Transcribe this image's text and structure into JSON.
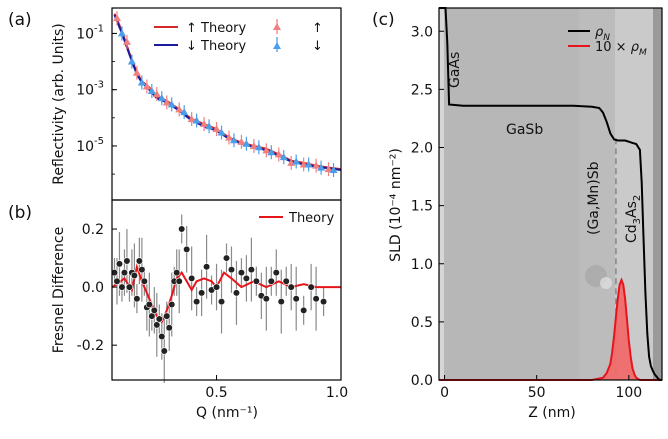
{
  "panels": {
    "a": {
      "label": "(a)"
    },
    "b": {
      "label": "(b)"
    },
    "c": {
      "label": "(c)"
    }
  },
  "colors": {
    "up_theory": "#d62728",
    "down_theory": "#1a1a9c",
    "up_data": "#f08080",
    "down_data": "#4a9eea",
    "fresnel_theory": "#e8141c",
    "rho_m": "#e8141c",
    "rho_m_fill": "#ef6a6a",
    "rho_n": "#000000",
    "micrograph": "#bdbdbd"
  },
  "chart_data": [
    {
      "type": "line",
      "panel": "a",
      "ylabel": "Reflectivity (arb. Units)",
      "yscale": "log",
      "ylim": [
        1.2e-07,
        0.8
      ],
      "xlim": [
        0.08,
        1.0
      ],
      "y_tick_labels": [
        "10^-1",
        "10^-3",
        "10^-5"
      ],
      "y_tick_values": [
        0.1,
        0.001,
        1e-05
      ],
      "legend": {
        "position": "top-right",
        "entries": [
          "↑  Theory",
          "↓  Theory",
          "↑",
          "↓"
        ]
      },
      "series": [
        {
          "name": "↑ Theory",
          "x": [
            0.09,
            0.12,
            0.15,
            0.18,
            0.2,
            0.23,
            0.26,
            0.3,
            0.35,
            0.4,
            0.45,
            0.5,
            0.55,
            0.6,
            0.65,
            0.7,
            0.75,
            0.8,
            0.85,
            0.9,
            0.95,
            1.0
          ],
          "y": [
            0.5,
            0.12,
            0.02,
            0.004,
            0.002,
            0.0012,
            0.0006,
            0.0004,
            0.0002,
            9e-05,
            6e-05,
            4e-05,
            2e-05,
            1.3e-05,
            1e-05,
            8e-06,
            5e-06,
            3e-06,
            2.5e-06,
            2e-06,
            1.7e-06,
            1.5e-06
          ]
        },
        {
          "name": "↓ Theory",
          "x": [
            0.09,
            0.12,
            0.15,
            0.18,
            0.2,
            0.23,
            0.26,
            0.3,
            0.35,
            0.4,
            0.45,
            0.5,
            0.55,
            0.6,
            0.65,
            0.7,
            0.75,
            0.8,
            0.85,
            0.9,
            0.95,
            1.0
          ],
          "y": [
            0.45,
            0.1,
            0.018,
            0.0035,
            0.0018,
            0.001,
            0.0005,
            0.00035,
            0.00018,
            8e-05,
            5e-05,
            3.5e-05,
            1.8e-05,
            1.2e-05,
            9e-06,
            7e-06,
            4.5e-06,
            2.8e-06,
            2.2e-06,
            1.8e-06,
            1.6e-06,
            1.4e-06
          ]
        },
        {
          "name": "↑",
          "x": [
            0.1,
            0.14,
            0.18,
            0.22,
            0.26,
            0.3,
            0.35,
            0.4,
            0.45,
            0.5,
            0.55,
            0.6,
            0.65,
            0.7,
            0.75,
            0.8,
            0.85,
            0.9,
            0.95
          ],
          "y": [
            0.35,
            0.05,
            0.004,
            0.0013,
            0.0007,
            0.00035,
            0.0002,
            9e-05,
            6e-05,
            4e-05,
            2e-05,
            1.4e-05,
            1e-05,
            7e-06,
            5e-06,
            2.5e-06,
            2.2e-06,
            2e-06,
            1.5e-06
          ]
        },
        {
          "name": "↓",
          "x": [
            0.12,
            0.16,
            0.2,
            0.24,
            0.28,
            0.32,
            0.37,
            0.42,
            0.47,
            0.52,
            0.57,
            0.62,
            0.67,
            0.72,
            0.77,
            0.82,
            0.87,
            0.92,
            0.97
          ],
          "y": [
            0.1,
            0.01,
            0.0018,
            0.0009,
            0.0005,
            0.0003,
            0.00016,
            8e-05,
            5e-05,
            3e-05,
            1.6e-05,
            1.2e-05,
            9e-06,
            6e-06,
            4e-06,
            2.8e-06,
            2.2e-06,
            1.7e-06,
            1.4e-06
          ]
        }
      ]
    },
    {
      "type": "scatter",
      "panel": "b",
      "xlabel": "Q (nm⁻¹)",
      "ylabel": "Fresnel Difference",
      "xlim": [
        0.08,
        1.0
      ],
      "ylim": [
        -0.32,
        0.3
      ],
      "x_tick_labels": [
        "0.5",
        "1.0"
      ],
      "x_tick_values": [
        0.5,
        1.0
      ],
      "y_tick_labels": [
        "0.2",
        "0.0",
        "-0.2"
      ],
      "y_tick_values": [
        0.2,
        0.0,
        -0.2
      ],
      "legend": {
        "position": "top-right",
        "entries": [
          "Theory"
        ]
      },
      "series": [
        {
          "name": "Theory",
          "x": [
            0.08,
            0.1,
            0.13,
            0.16,
            0.18,
            0.2,
            0.22,
            0.24,
            0.26,
            0.28,
            0.3,
            0.32,
            0.34,
            0.36,
            0.38,
            0.4,
            0.42,
            0.45,
            0.48,
            0.5,
            0.53,
            0.56,
            0.6,
            0.65,
            0.7,
            0.75,
            0.8,
            0.85,
            0.9,
            0.95,
            1.0
          ],
          "y": [
            0.0,
            0.01,
            0.03,
            -0.01,
            0.07,
            0.02,
            -0.02,
            -0.06,
            -0.1,
            -0.12,
            -0.08,
            -0.03,
            0.03,
            0.05,
            0.02,
            -0.01,
            0.02,
            0.03,
            0.02,
            0.0,
            0.05,
            0.03,
            0.0,
            0.02,
            0.0,
            0.02,
            0.0,
            0.01,
            0.0,
            0.0,
            0.0
          ]
        },
        {
          "name": "data",
          "x": [
            0.09,
            0.1,
            0.11,
            0.12,
            0.13,
            0.14,
            0.15,
            0.16,
            0.17,
            0.18,
            0.19,
            0.2,
            0.21,
            0.22,
            0.23,
            0.24,
            0.25,
            0.26,
            0.27,
            0.28,
            0.29,
            0.3,
            0.31,
            0.32,
            0.33,
            0.34,
            0.35,
            0.36,
            0.38,
            0.4,
            0.42,
            0.44,
            0.46,
            0.48,
            0.5,
            0.52,
            0.54,
            0.56,
            0.58,
            0.6,
            0.62,
            0.64,
            0.66,
            0.68,
            0.7,
            0.72,
            0.74,
            0.76,
            0.78,
            0.8,
            0.82,
            0.85,
            0.88,
            0.9,
            0.93
          ],
          "y": [
            0.05,
            0.02,
            0.08,
            0.0,
            0.05,
            0.09,
            0.0,
            0.05,
            0.04,
            -0.04,
            0.09,
            0.06,
            0.02,
            -0.07,
            -0.06,
            -0.1,
            -0.08,
            -0.13,
            -0.11,
            -0.17,
            -0.22,
            -0.1,
            -0.14,
            -0.06,
            0.02,
            0.05,
            0.02,
            0.2,
            0.13,
            0.03,
            -0.05,
            -0.02,
            0.07,
            -0.01,
            0.0,
            -0.05,
            0.1,
            0.06,
            -0.02,
            0.05,
            0.03,
            0.06,
            0.02,
            -0.03,
            -0.04,
            0.02,
            0.05,
            -0.05,
            0.02,
            0.0,
            -0.04,
            -0.08,
            0.0,
            -0.04,
            -0.05
          ]
        }
      ]
    },
    {
      "type": "area",
      "panel": "c",
      "xlabel": "Z (nm)",
      "ylabel": "SLD (10⁻⁴ nm⁻²)",
      "xlim": [
        -3,
        118
      ],
      "ylim": [
        0,
        3.2
      ],
      "x_tick_labels": [
        "0",
        "50",
        "100"
      ],
      "x_tick_values": [
        0,
        50,
        100
      ],
      "y_tick_labels": [
        "0.0",
        "0.5",
        "1.0",
        "1.5",
        "2.0",
        "2.5",
        "3.0"
      ],
      "y_tick_values": [
        0,
        0.5,
        1,
        1.5,
        2,
        2.5,
        3
      ],
      "legend": {
        "position": "top-right",
        "entries": [
          "ρN",
          "10 × ρM"
        ]
      },
      "layer_labels": [
        "GaAs",
        "GaSb",
        "(Ga,Mn)Sb",
        "Cd3As2"
      ],
      "series": [
        {
          "name": "ρN",
          "x": [
            -3,
            0.5,
            1.5,
            2.5,
            10,
            40,
            70,
            80,
            84,
            86,
            88,
            90,
            92,
            94,
            96,
            98,
            100,
            102,
            104,
            106,
            107,
            108,
            109,
            110,
            111,
            112,
            113,
            114,
            115,
            116,
            117,
            118
          ],
          "y": [
            3.2,
            3.2,
            2.9,
            2.37,
            2.36,
            2.36,
            2.36,
            2.35,
            2.34,
            2.3,
            2.22,
            2.12,
            2.07,
            2.06,
            2.06,
            2.06,
            2.05,
            2.04,
            2.03,
            1.98,
            1.7,
            1.2,
            0.75,
            0.4,
            0.2,
            0.12,
            0.08,
            0.05,
            0.03,
            0.01,
            0.0,
            0.0
          ]
        },
        {
          "name": "10 × ρM",
          "x": [
            -3,
            80,
            86,
            88,
            90,
            91,
            92,
            93,
            94,
            95,
            96,
            97,
            98,
            99,
            100,
            101,
            102,
            103,
            104,
            106,
            118
          ],
          "y": [
            0,
            0,
            0.02,
            0.06,
            0.14,
            0.24,
            0.38,
            0.54,
            0.7,
            0.82,
            0.86,
            0.82,
            0.7,
            0.52,
            0.34,
            0.2,
            0.1,
            0.05,
            0.02,
            0,
            0
          ]
        }
      ]
    }
  ]
}
